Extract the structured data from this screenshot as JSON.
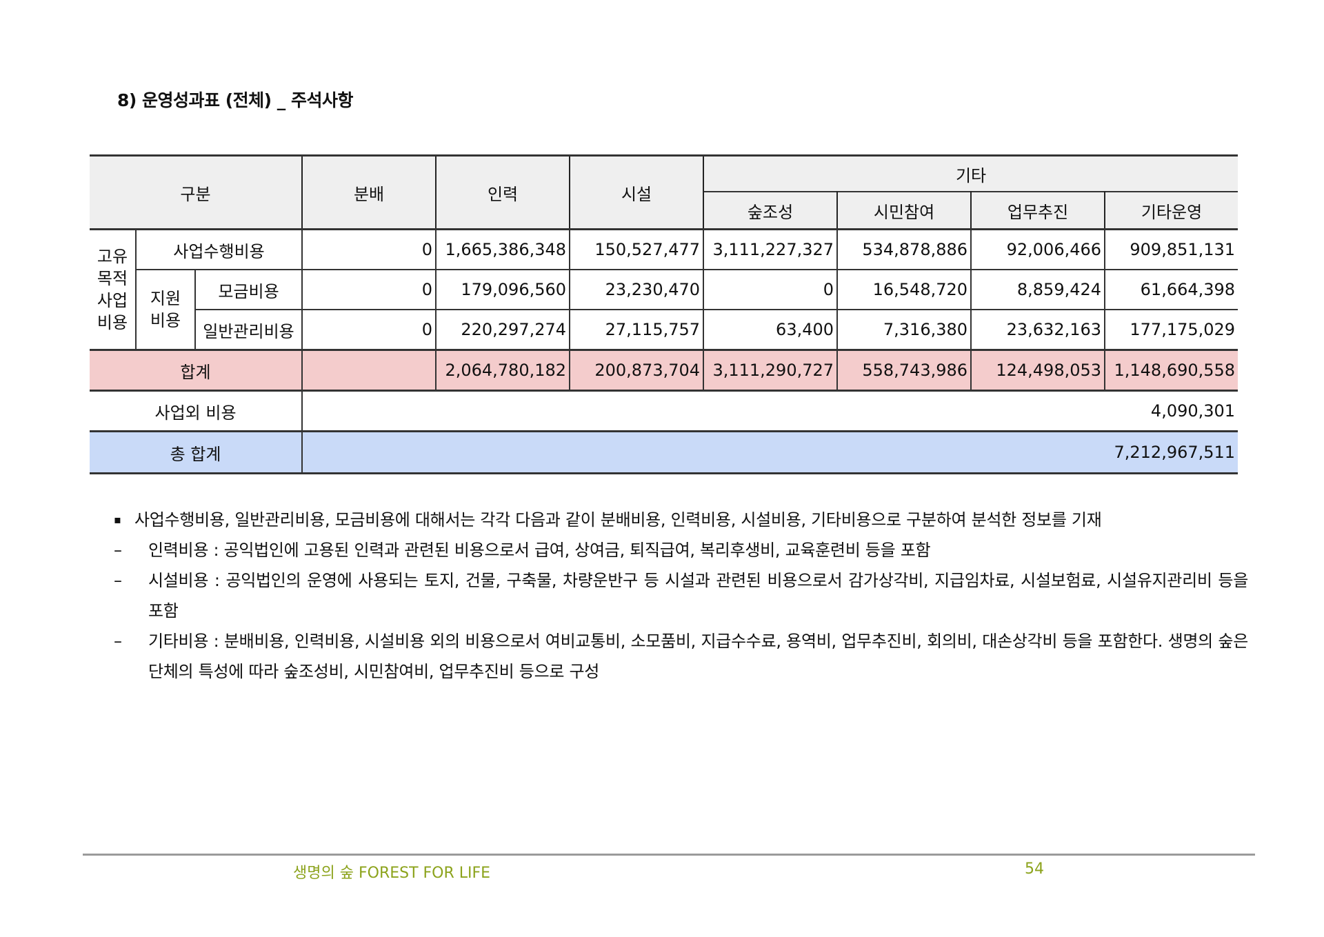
{
  "title": "8) 운영성과표 (전체) _ 주석사항",
  "table": {
    "headers": {
      "category": "구분",
      "distribution": "분배",
      "personnel": "인력",
      "facility": "시설",
      "other": "기타",
      "other_sub": [
        "숲조성",
        "시민참여",
        "업무추진",
        "기타운영"
      ]
    },
    "group_label": "고유\n목적\n사업\n비용",
    "support_label": "지원\n비용",
    "rows": [
      {
        "label": "사업수행비용",
        "values": [
          "0",
          "1,665,386,348",
          "150,527,477",
          "3,111,227,327",
          "534,878,886",
          "92,006,466",
          "909,851,131"
        ]
      },
      {
        "label": "모금비용",
        "values": [
          "0",
          "179,096,560",
          "23,230,470",
          "0",
          "16,548,720",
          "8,859,424",
          "61,664,398"
        ]
      },
      {
        "label": "일반관리비용",
        "values": [
          "0",
          "220,297,274",
          "27,115,757",
          "63,400",
          "7,316,380",
          "23,632,163",
          "177,175,029"
        ]
      }
    ],
    "sum": {
      "label": "합계",
      "values": [
        "",
        "2,064,780,182",
        "200,873,704",
        "3,111,290,727",
        "558,743,986",
        "124,498,053",
        "1,148,690,558"
      ]
    },
    "non_business": {
      "label": "사업외 비용",
      "value": "4,090,301"
    },
    "grand_total": {
      "label": "총 합계",
      "value": "7,212,967,511"
    }
  },
  "notes": [
    {
      "marker": "▪",
      "text": "사업수행비용, 일반관리비용, 모금비용에 대해서는 각각 다음과 같이 분배비용, 인력비용, 시설비용, 기타비용으로 구분하여 분석한 정보를 기재"
    },
    {
      "marker": "–",
      "text": "인력비용 : 공익법인에 고용된 인력과 관련된 비용으로서 급여, 상여금, 퇴직급여, 복리후생비, 교육훈련비 등을 포함"
    },
    {
      "marker": "–",
      "text": "시설비용 : 공익법인의 운영에 사용되는 토지, 건물, 구축물, 차량운반구 등 시설과 관련된 비용으로서 감가상각비, 지급임차료, 시설보험료, 시설유지관리비 등을 포함"
    },
    {
      "marker": "–",
      "text": "기타비용 : 분배비용, 인력비용, 시설비용 외의 비용으로서 여비교통비, 소모품비, 지급수수료, 용역비, 업무추진비, 회의비, 대손상각비 등을 포함한다. 생명의 숲은 단체의 특성에 따라 숲조성비, 시민참여비, 업무추진비 등으로 구성"
    }
  ],
  "footer": {
    "org": "생명의 숲",
    "org_en": "FOREST FOR LIFE",
    "page": "54"
  },
  "colors": {
    "sum_row": "#f4cccc",
    "total_row": "#c9daf8",
    "header": "#efefef",
    "footer_text": "#8ca31c"
  }
}
